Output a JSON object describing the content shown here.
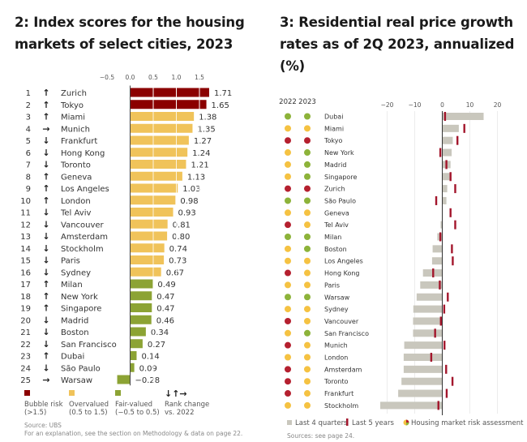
{
  "chart_data": [
    {
      "type": "bar",
      "orientation": "horizontal",
      "title": "2: Index scores for the housing markets of select cities, 2023",
      "x_ticks": [
        "−0.5",
        "0.0",
        "0.5",
        "1.0",
        "1.5"
      ],
      "xlim": [
        -0.5,
        1.75
      ],
      "grid": true,
      "categories": [
        "Zurich",
        "Tokyo",
        "Miami",
        "Munich",
        "Frankfurt",
        "Hong Kong",
        "Toronto",
        "Geneva",
        "Los Angeles",
        "London",
        "Tel Aviv",
        "Vancouver",
        "Amsterdam",
        "Stockholm",
        "Paris",
        "Sydney",
        "Milan",
        "New York",
        "Singapore",
        "Madrid",
        "Boston",
        "San Francisco",
        "Dubai",
        "São Paulo",
        "Warsaw"
      ],
      "ranks": [
        1,
        2,
        3,
        4,
        5,
        6,
        7,
        8,
        9,
        10,
        11,
        12,
        13,
        14,
        15,
        16,
        17,
        18,
        19,
        20,
        21,
        22,
        23,
        24,
        25
      ],
      "rank_change": [
        "up",
        "up",
        "up",
        "right",
        "down",
        "down",
        "down",
        "up",
        "up",
        "up",
        "down",
        "down",
        "down",
        "down",
        "down",
        "down",
        "up",
        "up",
        "up",
        "down",
        "down",
        "down",
        "up",
        "down",
        "right"
      ],
      "values": [
        1.71,
        1.65,
        1.38,
        1.35,
        1.27,
        1.24,
        1.21,
        1.13,
        1.03,
        0.98,
        0.93,
        0.81,
        0.8,
        0.74,
        0.73,
        0.67,
        0.49,
        0.47,
        0.47,
        0.46,
        0.34,
        0.27,
        0.14,
        0.09,
        -0.28
      ],
      "value_labels": [
        "1.71",
        "1.65",
        "1.38",
        "1.35",
        "1.27",
        "1.24",
        "1.21",
        "1.13",
        "1.03",
        "0.98",
        "0.93",
        "0.81",
        "0.80",
        "0.74",
        "0.73",
        "0.67",
        "0.49",
        "0.47",
        "0.47",
        "0.46",
        "0.34",
        "0.27",
        "0.14",
        "0.09",
        "−0.28"
      ],
      "legend": [
        {
          "label": "Bubble risk",
          "sub": "(>1.5)",
          "color": "#8b0000"
        },
        {
          "label": "Overvalued",
          "sub": "(0.5 to 1.5)",
          "color": "#f0c35a"
        },
        {
          "label": "Fair-valued",
          "sub": "(−0.5 to 0.5)",
          "color": "#8ca334"
        },
        {
          "label": "Rank change",
          "sub": "vs. 2022",
          "arrows": "↓↑→"
        }
      ],
      "source": "Source: UBS",
      "note": "For an explanation, see the section on Methodology & data on page 22.",
      "colors": {
        "bubble": "#8b0000",
        "over": "#f0c35a",
        "fair": "#8ca334"
      }
    },
    {
      "type": "bar",
      "orientation": "horizontal",
      "title": "3: Residential real price growth rates as of 2Q 2023, annualized (%)",
      "x_ticks": [
        "−20",
        "−10",
        "0",
        "10",
        "20"
      ],
      "xlim": [
        -25,
        22
      ],
      "grid": true,
      "year_headers": [
        "2022",
        "2023"
      ],
      "categories": [
        "Dubai",
        "Miami",
        "Tokyo",
        "New York",
        "Madrid",
        "Singapore",
        "Zurich",
        "São Paulo",
        "Geneva",
        "Tel Aviv",
        "Milan",
        "Boston",
        "Los Angeles",
        "Hong Kong",
        "Paris",
        "Warsaw",
        "Sydney",
        "Vancouver",
        "San Francisco",
        "Munich",
        "London",
        "Amsterdam",
        "Toronto",
        "Frankfurt",
        "Stockholm"
      ],
      "series": [
        {
          "name": "Last 4 quarters",
          "color": "#c9c7bd",
          "values": [
            15,
            6,
            3.8,
            3.4,
            3,
            3,
            1.8,
            1.5,
            0,
            -0.6,
            -1.8,
            -3.5,
            -3.7,
            -7,
            -8,
            -9.3,
            -10.5,
            -10.6,
            -10.6,
            -13.8,
            -14,
            -14,
            -14.8,
            -16,
            -22.5
          ]
        },
        {
          "name": "Last 5 years",
          "color": "#a3162c",
          "values": [
            1,
            8,
            5.5,
            -0.7,
            1.5,
            3,
            4.7,
            -2.2,
            3,
            4.7,
            -0.7,
            3.5,
            3.8,
            -3.3,
            -0.9,
            2,
            0.7,
            -0.5,
            -2.6,
            0.8,
            -4,
            1.4,
            3.7,
            1.6,
            -1.4
          ]
        }
      ],
      "risk_2022": [
        "fair",
        "over",
        "bubble",
        "over",
        "over",
        "over",
        "bubble",
        "fair",
        "over",
        "bubble",
        "fair",
        "over",
        "over",
        "bubble",
        "over",
        "fair",
        "over",
        "bubble",
        "over",
        "bubble",
        "over",
        "bubble",
        "bubble",
        "bubble",
        "over"
      ],
      "risk_2023": [
        "fair",
        "over",
        "bubble",
        "fair",
        "fair",
        "fair",
        "bubble",
        "fair",
        "over",
        "over",
        "fair",
        "fair",
        "over",
        "over",
        "over",
        "fair",
        "over",
        "over",
        "fair",
        "over",
        "over",
        "over",
        "over",
        "over",
        "over"
      ],
      "legend": [
        "Last 4 quarters",
        "Last 5 years",
        "Housing market risk assessment"
      ],
      "source": "Sources: see page 24.",
      "colors": {
        "bubble": "#b5202f",
        "over": "#f5c242",
        "fair": "#8db33a",
        "bar": "#c9c7bd",
        "marker": "#a3162c"
      }
    }
  ]
}
